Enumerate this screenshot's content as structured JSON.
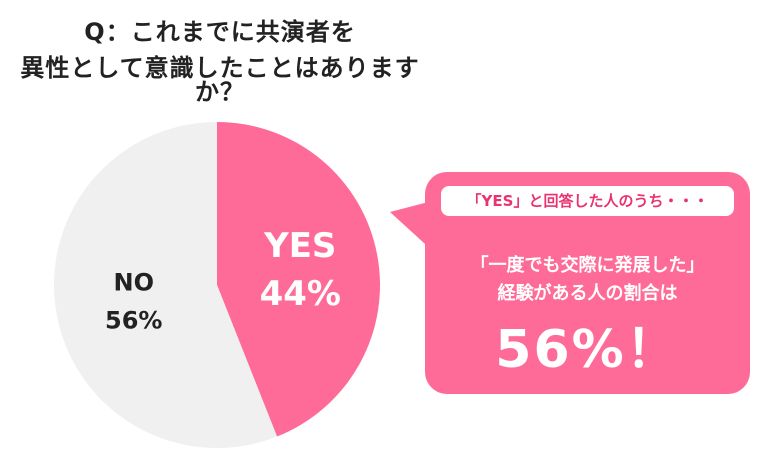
{
  "title": {
    "line1": "Q：これまでに共演者を",
    "line2": "異性として意識したことはありますか？"
  },
  "colors": {
    "yes": "#ff6b98",
    "no": "#f0f0f0",
    "label_dark": "#222222",
    "label_light": "#ffffff",
    "accent": "#e8336f"
  },
  "chart_data": {
    "type": "pie",
    "slices": [
      {
        "label": "YES",
        "value": 44,
        "display": "44%"
      },
      {
        "label": "NO",
        "value": 56,
        "display": "56%"
      }
    ]
  },
  "callout": {
    "header": "「YES」と回答した人のうち・・・",
    "line1": "「一度でも交際に発展した」",
    "line2": "経験がある人の割合は",
    "big": "56%！"
  }
}
